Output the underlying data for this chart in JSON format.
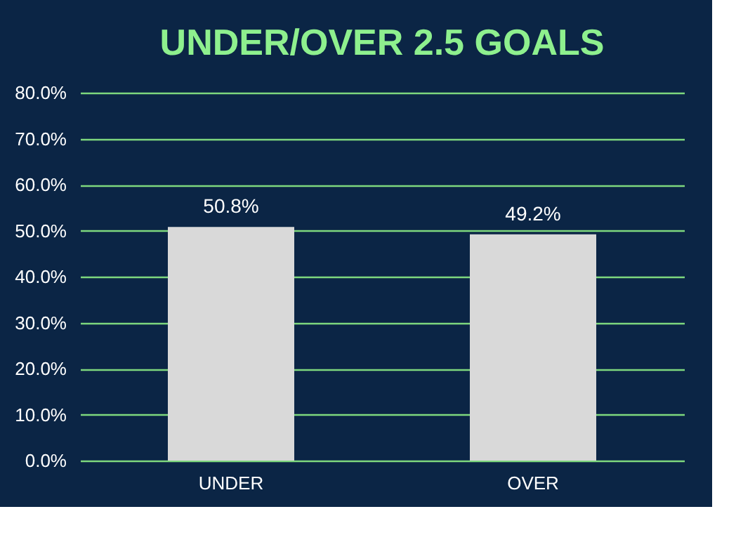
{
  "chart_data": {
    "type": "bar",
    "title": "UNDER/OVER 2.5 GOALS",
    "categories": [
      "UNDER",
      "OVER"
    ],
    "values": [
      50.8,
      49.2
    ],
    "color": "#d9d9d9",
    "value_labels": [
      "50.8%",
      "49.2%"
    ],
    "ylim": [
      0,
      80
    ],
    "yticks": [
      {
        "value": 0,
        "label": "0.0%"
      },
      {
        "value": 10,
        "label": "10.0%"
      },
      {
        "value": 20,
        "label": "20.0%"
      },
      {
        "value": 30,
        "label": "30.0%"
      },
      {
        "value": 40,
        "label": "40.0%"
      },
      {
        "value": 50,
        "label": "50.0%"
      },
      {
        "value": 60,
        "label": "60.0%"
      },
      {
        "value": 70,
        "label": "70.0%"
      },
      {
        "value": 80,
        "label": "80.0%"
      }
    ],
    "grid": "y"
  }
}
